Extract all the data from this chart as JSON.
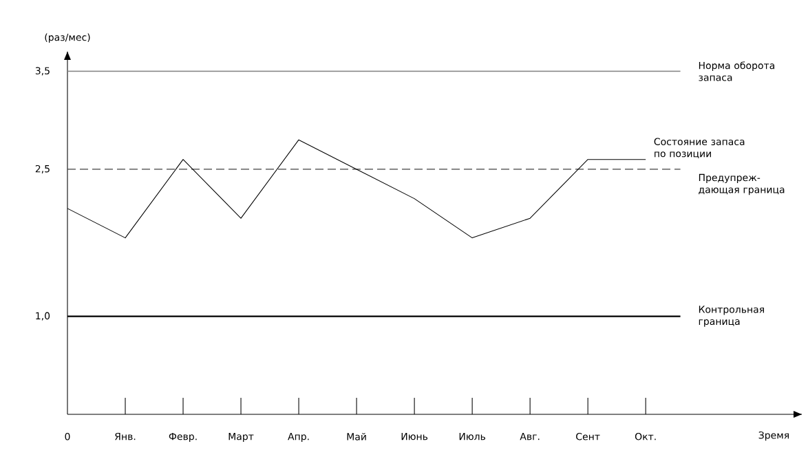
{
  "chart_data": {
    "type": "line",
    "ylabel": "(раз/мес)",
    "categories": [
      "0",
      "Янв.",
      "Февр.",
      "Март",
      "Апр.",
      "Май",
      "Июнь",
      "Июль",
      "Авг.",
      "Сент",
      "Окт."
    ],
    "series": [
      {
        "name": "Состояние запаса по позиции",
        "color": "#000000",
        "values": [
          2.1,
          1.8,
          2.6,
          2.0,
          2.8,
          2.5,
          2.2,
          1.8,
          2.0,
          2.6,
          2.6
        ]
      }
    ],
    "ylim": [
      0,
      3.7
    ],
    "yticks": [
      {
        "value": 1.0,
        "label": "1,0"
      },
      {
        "value": 2.5,
        "label": "2,5"
      },
      {
        "value": 3.5,
        "label": "3,5"
      }
    ],
    "ref_lines": [
      {
        "axis": "y",
        "value": 3.5,
        "label": "Норма оборота запаса",
        "color": "#808080",
        "line_style": "solid"
      },
      {
        "axis": "y",
        "value": 2.5,
        "label": "Предупреж-дающая граница",
        "color": "#404040",
        "line_style": "dashed"
      },
      {
        "axis": "y",
        "value": 1.0,
        "label": "Контрольная граница",
        "color": "#000000",
        "line_style": "solid"
      }
    ],
    "annotations": [
      "Зремя"
    ],
    "marker": "none",
    "line_style": "solid"
  }
}
